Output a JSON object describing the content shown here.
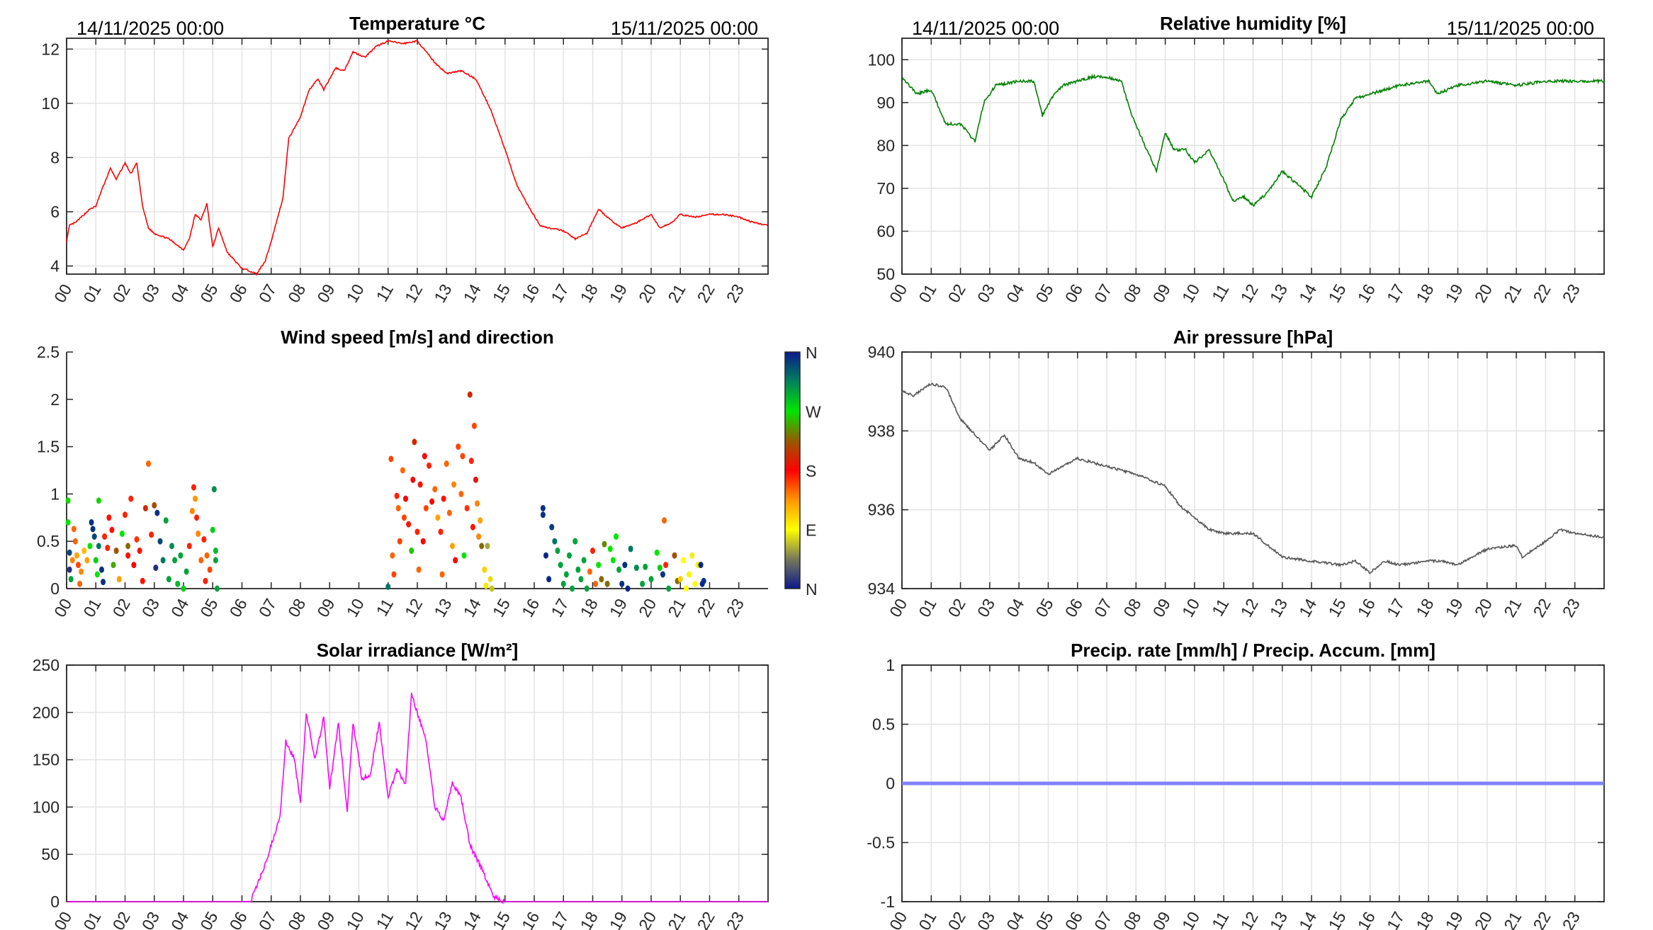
{
  "header": {
    "start_date": "14/11/2025 00:00",
    "end_date": "15/11/2025 00:00"
  },
  "colors": {
    "temperature": "#ff0000",
    "humidity": "#008000",
    "pressure": "#555555",
    "solar": "#ff00ff",
    "precip": "#8080ff"
  },
  "x_tick_labels": [
    "00",
    "01",
    "02",
    "03",
    "04",
    "05",
    "06",
    "07",
    "08",
    "09",
    "10",
    "11",
    "12",
    "13",
    "14",
    "15",
    "16",
    "17",
    "18",
    "19",
    "20",
    "21",
    "22",
    "23"
  ],
  "chart_data": [
    {
      "id": "temperature",
      "type": "line",
      "title": "Temperature °C",
      "xlabel": "",
      "ylabel": "",
      "xlim": [
        0,
        24
      ],
      "ylim": [
        3.7,
        12.4
      ],
      "yticks": [
        4,
        6,
        8,
        10,
        12
      ],
      "grid": true,
      "x": [
        0,
        0.1,
        0.3,
        0.5,
        0.8,
        1,
        1.2,
        1.5,
        1.7,
        2,
        2.2,
        2.4,
        2.6,
        2.8,
        3,
        3.5,
        4,
        4.2,
        4.4,
        4.6,
        4.8,
        5,
        5.2,
        5.5,
        6,
        6.2,
        6.5,
        6.8,
        7,
        7.2,
        7.4,
        7.6,
        8,
        8.3,
        8.6,
        8.8,
        9.2,
        9.5,
        9.8,
        10.2,
        10.6,
        11,
        11.5,
        12,
        12.3,
        12.6,
        13,
        13.5,
        14,
        14.5,
        15,
        15.4,
        15.8,
        16.2,
        16.5,
        17,
        17.4,
        17.8,
        18.2,
        18.6,
        19,
        19.5,
        20,
        20.3,
        20.7,
        21,
        21.5,
        22,
        22.5,
        23,
        23.5,
        24
      ],
      "y": [
        4.9,
        5.5,
        5.6,
        5.8,
        6.1,
        6.2,
        6.8,
        7.6,
        7.2,
        7.8,
        7.4,
        7.8,
        6.2,
        5.4,
        5.2,
        5.0,
        4.6,
        5.0,
        5.9,
        5.7,
        6.3,
        4.7,
        5.4,
        4.5,
        3.9,
        3.85,
        3.7,
        4.2,
        4.9,
        5.7,
        6.5,
        8.7,
        9.5,
        10.5,
        10.9,
        10.5,
        11.3,
        11.2,
        11.9,
        11.7,
        12.1,
        12.3,
        12.2,
        12.3,
        11.9,
        11.5,
        11.1,
        11.2,
        10.9,
        9.8,
        8.3,
        7.0,
        6.2,
        5.5,
        5.4,
        5.3,
        5.0,
        5.2,
        6.1,
        5.7,
        5.4,
        5.6,
        5.9,
        5.4,
        5.6,
        5.9,
        5.8,
        5.9,
        5.9,
        5.8,
        5.6,
        5.5
      ]
    },
    {
      "id": "humidity",
      "type": "line",
      "title": "Relative humidity [%]",
      "xlim": [
        0,
        24
      ],
      "ylim": [
        50,
        105
      ],
      "yticks": [
        50,
        60,
        70,
        80,
        90,
        100
      ],
      "grid": true,
      "x": [
        0,
        0.5,
        1,
        1.5,
        2,
        2.5,
        2.8,
        3.2,
        4,
        4.5,
        4.8,
        5.2,
        5.5,
        6.5,
        7,
        7.5,
        7.8,
        8.3,
        8.7,
        9,
        9.3,
        9.7,
        10,
        10.5,
        11,
        11.3,
        11.7,
        12,
        12.5,
        13,
        13.5,
        14,
        14.5,
        15,
        15.5,
        16,
        17,
        18,
        18.3,
        19,
        20,
        21,
        22,
        24
      ],
      "y": [
        96,
        92,
        93,
        85,
        85,
        81,
        90,
        94,
        95,
        95,
        87,
        92,
        94,
        96,
        96,
        95,
        88,
        80,
        74,
        83,
        79,
        79,
        76,
        79,
        72,
        67,
        68,
        66,
        69,
        74,
        71,
        68,
        75,
        86,
        91,
        92,
        94,
        95,
        92,
        94,
        95,
        94,
        95,
        95
      ]
    },
    {
      "id": "wind",
      "type": "scatter",
      "title": "Wind speed [m/s] and direction",
      "xlim": [
        0,
        24
      ],
      "ylim": [
        0,
        2.5
      ],
      "yticks": [
        0,
        0.5,
        1,
        1.5,
        2,
        2.5
      ],
      "grid": false,
      "colorbar_labels": [
        "N",
        "W",
        "S",
        "E",
        "N"
      ],
      "points_hour_speed_direction": [
        [
          0.05,
          0.93,
          265
        ],
        [
          0.05,
          0.7,
          270
        ],
        [
          0.1,
          0.38,
          340
        ],
        [
          0.1,
          0.2,
          10
        ],
        [
          0.15,
          0.1,
          300
        ],
        [
          0.2,
          0.3,
          140
        ],
        [
          0.25,
          0.63,
          150
        ],
        [
          0.3,
          0.5,
          150
        ],
        [
          0.35,
          0.35,
          130
        ],
        [
          0.4,
          0.25,
          160
        ],
        [
          0.45,
          0.05,
          150
        ],
        [
          0.5,
          0.18,
          140
        ],
        [
          0.6,
          0.4,
          120
        ],
        [
          0.7,
          0.3,
          130
        ],
        [
          0.8,
          0.45,
          270
        ],
        [
          0.85,
          0.7,
          350
        ],
        [
          0.9,
          0.63,
          350
        ],
        [
          0.95,
          0.55,
          340
        ],
        [
          1.0,
          0.3,
          280
        ],
        [
          1.05,
          0.15,
          270
        ],
        [
          1.1,
          0.93,
          265
        ],
        [
          1.1,
          0.45,
          320
        ],
        [
          1.2,
          0.2,
          350
        ],
        [
          1.25,
          0.07,
          350
        ],
        [
          1.3,
          0.55,
          170
        ],
        [
          1.4,
          0.43,
          170
        ],
        [
          1.45,
          0.75,
          175
        ],
        [
          1.55,
          0.62,
          175
        ],
        [
          1.6,
          0.25,
          250
        ],
        [
          1.7,
          0.4,
          220
        ],
        [
          1.8,
          0.1,
          130
        ],
        [
          1.9,
          0.58,
          270
        ],
        [
          2.0,
          0.78,
          170
        ],
        [
          2.1,
          0.35,
          175
        ],
        [
          2.1,
          0.45,
          230
        ],
        [
          2.2,
          0.95,
          170
        ],
        [
          2.3,
          0.25,
          180
        ],
        [
          2.4,
          0.52,
          165
        ],
        [
          2.5,
          0.4,
          175
        ],
        [
          2.6,
          0.08,
          175
        ],
        [
          2.7,
          0.85,
          200
        ],
        [
          2.8,
          1.32,
          150
        ],
        [
          2.9,
          0.57,
          170
        ],
        [
          3.0,
          0.88,
          220
        ],
        [
          3.05,
          0.22,
          10
        ],
        [
          3.1,
          0.8,
          350
        ],
        [
          3.2,
          0.5,
          340
        ],
        [
          3.3,
          0.3,
          320
        ],
        [
          3.4,
          0.72,
          300
        ],
        [
          3.5,
          0.1,
          300
        ],
        [
          3.6,
          0.45,
          310
        ],
        [
          3.7,
          0.3,
          300
        ],
        [
          3.8,
          0.05,
          290
        ],
        [
          3.9,
          0.35,
          300
        ],
        [
          4.0,
          0.0,
          280
        ],
        [
          4.1,
          0.18,
          300
        ],
        [
          4.2,
          0.45,
          170
        ],
        [
          4.3,
          0.82,
          140
        ],
        [
          4.35,
          1.07,
          170
        ],
        [
          4.4,
          0.95,
          135
        ],
        [
          4.45,
          0.75,
          170
        ],
        [
          4.5,
          0.58,
          140
        ],
        [
          4.6,
          0.3,
          150
        ],
        [
          4.7,
          0.52,
          170
        ],
        [
          4.75,
          0.08,
          170
        ],
        [
          4.8,
          0.35,
          150
        ],
        [
          4.9,
          0.2,
          160
        ],
        [
          5.0,
          0.62,
          280
        ],
        [
          5.05,
          1.05,
          310
        ],
        [
          5.1,
          0.3,
          300
        ],
        [
          5.15,
          0.0,
          300
        ],
        [
          5.1,
          0.4,
          290
        ],
        [
          11.0,
          0.02,
          320
        ],
        [
          11.1,
          1.37,
          160
        ],
        [
          11.15,
          0.35,
          150
        ],
        [
          11.2,
          0.15,
          160
        ],
        [
          11.3,
          0.98,
          170
        ],
        [
          11.35,
          0.85,
          150
        ],
        [
          11.4,
          0.5,
          160
        ],
        [
          11.5,
          1.25,
          150
        ],
        [
          11.55,
          0.75,
          160
        ],
        [
          11.6,
          0.95,
          180
        ],
        [
          11.7,
          0.68,
          175
        ],
        [
          11.8,
          0.4,
          260
        ],
        [
          11.85,
          1.15,
          185
        ],
        [
          11.9,
          1.55,
          200
        ],
        [
          12.0,
          0.6,
          170
        ],
        [
          12.05,
          0.2,
          150
        ],
        [
          12.1,
          1.1,
          175
        ],
        [
          12.2,
          0.5,
          180
        ],
        [
          12.25,
          1.4,
          180
        ],
        [
          12.3,
          0.85,
          160
        ],
        [
          12.4,
          1.3,
          170
        ],
        [
          12.5,
          0.92,
          185
        ],
        [
          12.6,
          1.05,
          150
        ],
        [
          12.7,
          0.75,
          130
        ],
        [
          12.8,
          0.6,
          170
        ],
        [
          12.85,
          0.15,
          150
        ],
        [
          12.9,
          0.95,
          175
        ],
        [
          13.0,
          1.32,
          150
        ],
        [
          13.1,
          0.8,
          150
        ],
        [
          13.2,
          0.45,
          130
        ],
        [
          13.25,
          1.1,
          140
        ],
        [
          13.3,
          0.3,
          180
        ],
        [
          13.4,
          1.5,
          160
        ],
        [
          13.5,
          1.0,
          150
        ],
        [
          13.55,
          1.4,
          160
        ],
        [
          13.6,
          0.35,
          270
        ],
        [
          13.7,
          0.85,
          165
        ],
        [
          13.8,
          2.05,
          200
        ],
        [
          13.85,
          1.35,
          170
        ],
        [
          13.9,
          0.65,
          175
        ],
        [
          13.95,
          1.72,
          160
        ],
        [
          14.0,
          1.15,
          190
        ],
        [
          14.05,
          0.9,
          140
        ],
        [
          14.1,
          0.55,
          140
        ],
        [
          14.15,
          0.72,
          130
        ],
        [
          14.2,
          0.45,
          230
        ],
        [
          14.3,
          0.2,
          110
        ],
        [
          14.35,
          0.03,
          100
        ],
        [
          14.4,
          0.45,
          60
        ],
        [
          14.5,
          0.1,
          80
        ],
        [
          14.55,
          0.0,
          70
        ],
        [
          16.3,
          0.85,
          350
        ],
        [
          16.3,
          0.78,
          350
        ],
        [
          16.4,
          0.35,
          355
        ],
        [
          16.5,
          0.1,
          355
        ],
        [
          16.6,
          0.65,
          345
        ],
        [
          16.7,
          0.5,
          320
        ],
        [
          16.8,
          0.4,
          300
        ],
        [
          16.9,
          0.25,
          300
        ],
        [
          17.0,
          0.05,
          300
        ],
        [
          17.1,
          0.15,
          300
        ],
        [
          17.2,
          0.35,
          300
        ],
        [
          17.3,
          0.0,
          300
        ],
        [
          17.4,
          0.5,
          300
        ],
        [
          17.5,
          0.2,
          300
        ],
        [
          17.6,
          0.1,
          300
        ],
        [
          17.7,
          0.3,
          300
        ],
        [
          17.8,
          0.0,
          300
        ],
        [
          17.9,
          0.18,
          150
        ],
        [
          18.0,
          0.4,
          170
        ],
        [
          18.1,
          0.05,
          150
        ],
        [
          18.2,
          0.25,
          270
        ],
        [
          18.3,
          0.1,
          230
        ],
        [
          18.4,
          0.47,
          240
        ],
        [
          18.5,
          0.05,
          230
        ],
        [
          18.6,
          0.42,
          270
        ],
        [
          18.7,
          0.3,
          270
        ],
        [
          18.8,
          0.55,
          270
        ],
        [
          18.9,
          0.2,
          300
        ],
        [
          19.0,
          0.05,
          350
        ],
        [
          19.1,
          0.25,
          350
        ],
        [
          19.2,
          0.0,
          355
        ],
        [
          19.3,
          0.42,
          320
        ],
        [
          19.5,
          0.22,
          310
        ],
        [
          19.7,
          0.05,
          300
        ],
        [
          19.8,
          0.23,
          300
        ],
        [
          20.0,
          0.1,
          300
        ],
        [
          20.2,
          0.38,
          270
        ],
        [
          20.3,
          0.22,
          280
        ],
        [
          20.4,
          0.15,
          350
        ],
        [
          20.45,
          0.72,
          150
        ],
        [
          20.5,
          0.25,
          170
        ],
        [
          20.6,
          0.0,
          300
        ],
        [
          20.8,
          0.35,
          220
        ],
        [
          20.9,
          0.08,
          230
        ],
        [
          21.0,
          0.1,
          110
        ],
        [
          21.1,
          0.3,
          90
        ],
        [
          21.2,
          0.0,
          90
        ],
        [
          21.3,
          0.15,
          95
        ],
        [
          21.4,
          0.35,
          85
        ],
        [
          21.5,
          0.05,
          90
        ],
        [
          21.6,
          0.25,
          85
        ],
        [
          21.7,
          0.25,
          355
        ],
        [
          21.75,
          0.05,
          355
        ],
        [
          21.8,
          0.08,
          350
        ]
      ]
    },
    {
      "id": "pressure",
      "type": "line",
      "title": "Air pressure [hPa]",
      "xlim": [
        0,
        24
      ],
      "ylim": [
        934,
        940
      ],
      "yticks": [
        934,
        936,
        938,
        940
      ],
      "grid": true,
      "x": [
        0,
        0.4,
        1,
        1.5,
        2,
        2.5,
        3,
        3.5,
        4,
        4.5,
        5,
        5.5,
        6,
        7,
        8,
        9,
        9.5,
        10,
        10.5,
        11,
        12,
        12.5,
        13,
        14,
        15,
        15.5,
        16,
        16.5,
        17,
        18,
        18.5,
        19,
        20,
        21,
        21.2,
        22,
        22.5,
        23,
        24
      ],
      "y": [
        939.0,
        938.9,
        939.2,
        939.1,
        938.3,
        937.9,
        937.5,
        937.9,
        937.3,
        937.2,
        936.9,
        937.1,
        937.3,
        937.1,
        936.9,
        936.6,
        936.1,
        935.8,
        935.5,
        935.4,
        935.4,
        935.1,
        934.8,
        934.7,
        934.6,
        934.7,
        934.4,
        934.7,
        934.6,
        934.7,
        934.7,
        934.6,
        935.0,
        935.1,
        934.8,
        935.2,
        935.5,
        935.4,
        935.3
      ]
    },
    {
      "id": "solar",
      "type": "line",
      "title": "Solar irradiance [W/m²]",
      "xlim": [
        0,
        24
      ],
      "ylim": [
        0,
        250
      ],
      "yticks": [
        0,
        50,
        100,
        150,
        200,
        250
      ],
      "grid": true,
      "x": [
        0,
        6.3,
        6.8,
        7,
        7.3,
        7.5,
        7.8,
        8,
        8.2,
        8.5,
        8.8,
        9,
        9.3,
        9.6,
        9.8,
        10.1,
        10.4,
        10.7,
        11,
        11.3,
        11.6,
        11.8,
        12,
        12.3,
        12.6,
        12.9,
        13.2,
        13.5,
        13.8,
        14.2,
        14.6,
        15,
        24
      ],
      "y": [
        0,
        0,
        40,
        60,
        90,
        170,
        150,
        105,
        200,
        150,
        195,
        120,
        190,
        95,
        190,
        130,
        135,
        190,
        110,
        140,
        125,
        220,
        200,
        170,
        100,
        85,
        125,
        110,
        60,
        35,
        5,
        0,
        0
      ]
    },
    {
      "id": "precip",
      "type": "line",
      "title": "Precip. rate [mm/h] / Precip. Accum. [mm]",
      "xlim": [
        0,
        24
      ],
      "ylim": [
        -1,
        1
      ],
      "yticks": [
        -1,
        -0.5,
        0,
        0.5,
        1
      ],
      "grid": true,
      "x": [
        0,
        24
      ],
      "y": [
        0,
        0
      ]
    }
  ]
}
